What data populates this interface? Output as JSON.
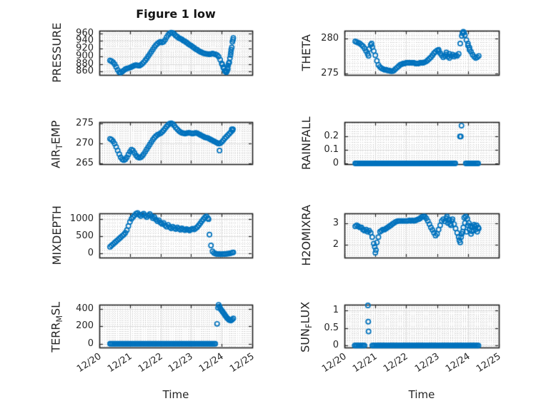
{
  "title": "Figure 1 low",
  "xlabel": "Time",
  "x_tick_labels": [
    "12/20",
    "12/21",
    "12/22",
    "12/23",
    "12/24",
    "12/25"
  ],
  "colors": {
    "marker": "#0072BD",
    "axis_text": "#262626",
    "frame": "#1f1f1f",
    "grid_major": "#dbdbdb",
    "grid_minor": "#cfcfcf",
    "background": "#ffffff"
  },
  "x_axis": {
    "unit": "days after 12/20",
    "xlim_days": [
      0,
      5
    ],
    "minor_step_days": 0.08333
  },
  "chart_data": [
    {
      "name": "PRESSURE",
      "type": "scatter",
      "row": 0,
      "col": 0,
      "label_parts": [
        {
          "text": "PRESSURE",
          "sub": false
        }
      ],
      "y_ticks": [
        860,
        880,
        900,
        920,
        940,
        960
      ],
      "y_tick_labels": [
        "860",
        "880",
        "900",
        "920",
        "940",
        "960"
      ],
      "ylim": [
        851,
        967
      ],
      "y_minor_step": 5,
      "data": [
        {
          "x_start": 0.35,
          "x_step": 0.05,
          "y": [
            889,
            887,
            884,
            879,
            872,
            864,
            858,
            857,
            860,
            863,
            866,
            868,
            869,
            870,
            872,
            874,
            876,
            877,
            876,
            875,
            877,
            880,
            884,
            889,
            894,
            900,
            906,
            912,
            918,
            924,
            929,
            933,
            936,
            938,
            936,
            938,
            943,
            950,
            956,
            960,
            962,
            961,
            958,
            954,
            951,
            948,
            946,
            944,
            941,
            939,
            936,
            933,
            930,
            928,
            925,
            922,
            919,
            917,
            914,
            912,
            910,
            908,
            907,
            906,
            906,
            905,
            906,
            907,
            906,
            905,
            903,
            899,
            891,
            881,
            871,
            862,
            858,
            866,
            884,
            910,
            938
          ]
        },
        {
          "x": [
            4.02,
            4.07,
            4.12,
            4.17,
            4.19,
            4.21,
            4.23,
            4.27,
            4.29,
            4.31,
            4.33,
            4.37,
            4.38
          ],
          "y": [
            878,
            868,
            860,
            861,
            869,
            876,
            882,
            895,
            903,
            917,
            923,
            943,
            948
          ]
        }
      ]
    },
    {
      "name": "THETA",
      "type": "scatter",
      "row": 0,
      "col": 1,
      "label_parts": [
        {
          "text": "THETA",
          "sub": false
        }
      ],
      "y_ticks": [
        275,
        280
      ],
      "y_tick_labels": [
        "275",
        "280"
      ],
      "ylim": [
        274.75,
        281.15
      ],
      "y_minor_step": 0.5,
      "data": [
        {
          "x_start": 0.35,
          "x_step": 0.05,
          "y": [
            279.6,
            279.5,
            279.4,
            279.3,
            279.1,
            278.9,
            278.6,
            278.2,
            277.8,
            278.5,
            279.1,
            278.8,
            278.2,
            277.6,
            276.8,
            276.2,
            275.9,
            275.7,
            275.6,
            275.5,
            275.5,
            275.4,
            275.4,
            275.3,
            275.3,
            275.4,
            275.6,
            275.8,
            276.0,
            276.2,
            276.3,
            276.4,
            276.4,
            276.5,
            276.5,
            276.5,
            276.5,
            276.5,
            276.5,
            276.4,
            276.4,
            276.4,
            276.5,
            276.5,
            276.5,
            276.6,
            276.7,
            276.9,
            277.1,
            277.3,
            277.6,
            277.9,
            278.1,
            278.3,
            278.2,
            277.9,
            277.6,
            277.3,
            277.5,
            277.7,
            277.4,
            277.2,
            277.5,
            277.7,
            277.4,
            277.6,
            277.5,
            277.8,
            279.3,
            280.4,
            281.0,
            280.5,
            279.8,
            279.3,
            278.7,
            278.1,
            277.7,
            277.4,
            277.2,
            277.3,
            277.5
          ]
        },
        {
          "x": [
            0.78,
            0.88,
            3.05,
            3.3,
            3.4,
            3.82,
            3.87,
            4.0,
            4.05
          ],
          "y": [
            277.5,
            279.3,
            278.4,
            278.0,
            277.8,
            280.8,
            280.9,
            279.0,
            278.4
          ]
        }
      ]
    },
    {
      "name": "AIR_TEMP",
      "type": "scatter",
      "row": 1,
      "col": 0,
      "label_parts": [
        {
          "text": "AIR",
          "sub": false
        },
        {
          "text": "T",
          "sub": true
        },
        {
          "text": "EMP",
          "sub": false
        }
      ],
      "y_ticks": [
        265,
        270,
        275
      ],
      "y_tick_labels": [
        "265",
        "270",
        "275"
      ],
      "ylim": [
        264.9,
        275.4
      ],
      "y_minor_step": 0.5,
      "data": [
        {
          "x_start": 0.35,
          "x_step": 0.05,
          "y": [
            271.2,
            271.0,
            270.6,
            270.0,
            269.2,
            268.3,
            267.4,
            266.6,
            266.1,
            265.9,
            266.1,
            266.6,
            267.3,
            268.0,
            268.5,
            268.3,
            267.7,
            267.1,
            266.7,
            266.5,
            266.6,
            266.9,
            267.4,
            268.0,
            268.6,
            269.2,
            269.8,
            270.4,
            271.0,
            271.5,
            271.9,
            272.2,
            272.4,
            272.6,
            272.9,
            273.3,
            273.8,
            274.3,
            274.7,
            275.0,
            275.1,
            274.9,
            274.5,
            274.0,
            273.6,
            273.2,
            272.9,
            272.7,
            272.6,
            272.5,
            272.6,
            272.7,
            272.7,
            272.6,
            272.5,
            272.6,
            272.7,
            272.6,
            272.4,
            272.2,
            272.0,
            271.8,
            271.6,
            271.5,
            271.4,
            271.2,
            271.0,
            270.8,
            270.6,
            270.4,
            270.2,
            270.0,
            270.1,
            270.4,
            270.8,
            271.3,
            271.7,
            272.1,
            272.5,
            272.9,
            273.3
          ]
        },
        {
          "x": [
            3.93,
            4.33,
            4.37
          ],
          "y": [
            268.3,
            273.6,
            273.6
          ]
        }
      ]
    },
    {
      "name": "RAINFALL",
      "type": "scatter",
      "row": 1,
      "col": 1,
      "label_parts": [
        {
          "text": "RAINFALL",
          "sub": false
        }
      ],
      "y_ticks": [
        0,
        0.1,
        0.2
      ],
      "y_tick_labels": [
        "0",
        "0.1",
        "0.2"
      ],
      "ylim": [
        -0.005,
        0.307
      ],
      "y_minor_step": 0.02,
      "data": [
        {
          "x_start": 0.35,
          "x_end": 3.6,
          "x_step": 0.04,
          "y_const": 0
        },
        {
          "x_start": 3.93,
          "x_end": 4.35,
          "x_step": 0.04,
          "y_const": 0
        },
        {
          "x": [
            3.74,
            3.77,
            3.79
          ],
          "y": [
            0.2,
            0.2,
            0.28
          ]
        }
      ]
    },
    {
      "name": "MIXDEPTH",
      "type": "scatter",
      "row": 2,
      "col": 0,
      "label_parts": [
        {
          "text": "MIXDEPTH",
          "sub": false
        }
      ],
      "y_ticks": [
        0,
        500,
        1000
      ],
      "y_tick_labels": [
        "0",
        "500",
        "1000"
      ],
      "ylim": [
        -125,
        1170
      ],
      "y_minor_step": 100,
      "data": [
        {
          "x_start": 0.35,
          "x_step": 0.05,
          "y": [
            190,
            230,
            270,
            310,
            350,
            390,
            430,
            470,
            510,
            550,
            600,
            680,
            800,
            920,
            1010,
            1060,
            1110,
            1160,
            1180,
            1130,
            1090,
            1140,
            1160,
            1100,
            1060,
            1110,
            1150,
            1090,
            1030,
            1060,
            990,
            940,
            970,
            900,
            860,
            890,
            820,
            780,
            830,
            770,
            730,
            780,
            740,
            710,
            760,
            720,
            690,
            730,
            700,
            680,
            710,
            690,
            670,
            700,
            720,
            700,
            730,
            770,
            820,
            880,
            940,
            1000,
            1050,
            1080,
            1030,
            550,
            230,
            60,
            10,
            -10,
            -20,
            -20,
            -25,
            -25,
            -20,
            -20,
            -15,
            -10,
            -5,
            5,
            20
          ]
        },
        {
          "x": [
            3.57,
            4.38
          ],
          "y": [
            1000,
            30
          ]
        }
      ]
    },
    {
      "name": "H2OMIXRA",
      "type": "scatter",
      "row": 2,
      "col": 1,
      "label_parts": [
        {
          "text": "H2OMIXRA",
          "sub": false
        }
      ],
      "y_ticks": [
        2,
        3
      ],
      "y_tick_labels": [
        "2",
        "3"
      ],
      "ylim": [
        1.4,
        3.45
      ],
      "y_minor_step": 0.1,
      "data": [
        {
          "x_start": 0.35,
          "x_step": 0.05,
          "y": [
            2.85,
            2.9,
            2.85,
            2.8,
            2.8,
            2.7,
            2.65,
            2.7,
            2.6,
            2.65,
            2.55,
            2.35,
            2.05,
            1.62,
            2.1,
            2.35,
            2.6,
            2.65,
            2.7,
            2.7,
            2.75,
            2.8,
            2.85,
            2.9,
            2.95,
            3.0,
            3.05,
            3.08,
            3.1,
            3.1,
            3.1,
            3.1,
            3.1,
            3.1,
            3.1,
            3.12,
            3.1,
            3.12,
            3.1,
            3.12,
            3.15,
            3.18,
            3.22,
            3.28,
            3.3,
            3.3,
            3.22,
            3.1,
            2.95,
            2.8,
            2.68,
            2.55,
            2.42,
            2.5,
            2.7,
            2.9,
            3.1,
            3.18,
            3.08,
            3.22,
            3.0,
            3.15,
            2.9,
            3.18,
            2.95,
            2.75,
            2.55,
            2.35,
            2.1,
            2.5,
            2.8,
            3.0,
            2.6,
            2.9,
            2.7,
            2.5,
            2.8,
            2.92,
            2.7,
            2.6,
            2.75
          ]
        },
        {
          "x": [
            0.98,
            1.02,
            3.32,
            3.37,
            3.42,
            3.47,
            3.72,
            3.78,
            3.83,
            3.88,
            3.93,
            3.98,
            4.03,
            4.08,
            4.12,
            4.18,
            4.22,
            4.28,
            4.33
          ],
          "y": [
            1.9,
            1.75,
            3.3,
            3.15,
            2.95,
            3.1,
            2.2,
            2.35,
            2.6,
            3.25,
            3.3,
            3.2,
            3.0,
            2.85,
            2.62,
            2.65,
            2.85,
            2.9,
            2.8
          ]
        }
      ]
    },
    {
      "name": "TERR_MSL",
      "type": "scatter",
      "row": 3,
      "col": 0,
      "label_parts": [
        {
          "text": "TERR",
          "sub": false
        },
        {
          "text": "M",
          "sub": true
        },
        {
          "text": "SL",
          "sub": false
        }
      ],
      "y_ticks": [
        0,
        200,
        400
      ],
      "y_tick_labels": [
        "0",
        "200",
        "400"
      ],
      "ylim": [
        -43,
        451
      ],
      "y_minor_step": 25,
      "data": [
        {
          "x_start": 0.35,
          "x_end": 3.8,
          "x_step": 0.04,
          "y_const": 0
        },
        {
          "x": [
            3.85,
            3.88,
            3.9,
            3.93,
            3.96,
            3.99,
            4.02,
            4.05,
            4.08,
            4.11,
            4.14,
            4.17,
            4.2,
            4.23,
            4.26,
            4.3,
            4.34,
            4.38
          ],
          "y": [
            230,
            415,
            450,
            430,
            405,
            390,
            375,
            360,
            345,
            330,
            315,
            300,
            290,
            280,
            272,
            268,
            278,
            292
          ]
        }
      ]
    },
    {
      "name": "SUN_FLUX",
      "type": "scatter",
      "row": 3,
      "col": 1,
      "label_parts": [
        {
          "text": "SUN",
          "sub": false
        },
        {
          "text": "F",
          "sub": true
        },
        {
          "text": "LUX",
          "sub": false
        }
      ],
      "y_ticks": [
        0,
        0.5,
        1
      ],
      "y_tick_labels": [
        "0",
        "0.5",
        "1"
      ],
      "ylim": [
        -0.055,
        1.16
      ],
      "y_minor_step": 0.05,
      "data": [
        {
          "x_start": 0.33,
          "x_end": 0.65,
          "x_step": 0.04,
          "y_const": 0
        },
        {
          "x_start": 0.9,
          "x_end": 4.35,
          "x_step": 0.04,
          "y_const": 0
        },
        {
          "x": [
            0.76,
            0.77,
            0.78
          ],
          "y": [
            1.14,
            0.68,
            0.4
          ]
        }
      ]
    }
  ]
}
